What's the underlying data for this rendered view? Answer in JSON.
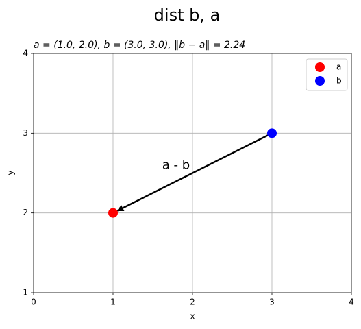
{
  "chart_data": {
    "type": "scatter",
    "title": "dist b, a",
    "subtitle": "a = (1.0, 2.0), b = (3.0, 3.0), ‖b − a‖ = 2.24",
    "xlabel": "x",
    "ylabel": "y",
    "series": [
      {
        "name": "a",
        "color": "#ff0000",
        "x": [
          1
        ],
        "values": [
          2
        ]
      },
      {
        "name": "b",
        "color": "#0000ff",
        "x": [
          3
        ],
        "values": [
          3
        ]
      }
    ],
    "annotation": "a - b",
    "xlim": [
      0,
      4
    ],
    "xticks": [
      0,
      1,
      2,
      3,
      4
    ],
    "ylim": [
      1,
      4
    ],
    "yticks": [
      1,
      2,
      3,
      4
    ],
    "grid": true,
    "legend": "upper right"
  }
}
